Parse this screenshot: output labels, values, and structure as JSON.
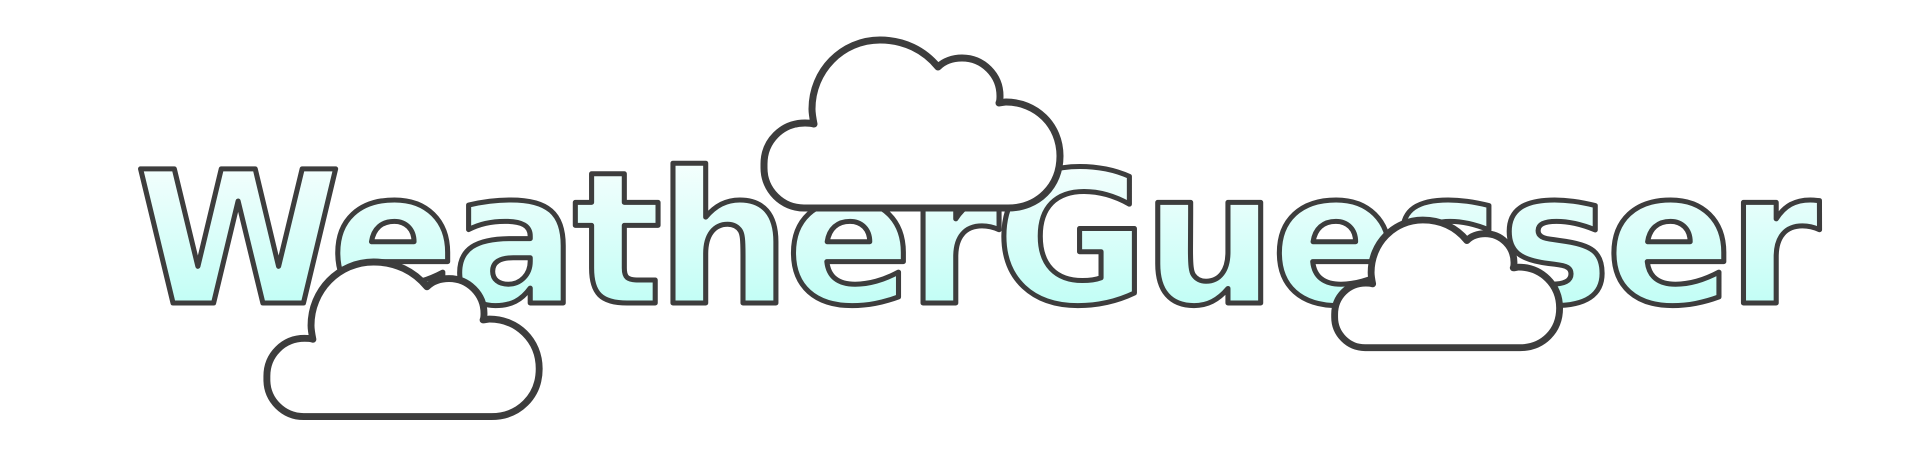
{
  "logo": {
    "text": "WeatherGuesser"
  },
  "colors": {
    "text_fill_top": "#ffffff",
    "text_fill_bottom": "#b3fdf3",
    "outline": "#3d3d3d",
    "cloud_fill": "#ffffff",
    "background": "#ffffff"
  },
  "icons": [
    "cloud-icon",
    "cloud-icon",
    "cloud-icon"
  ]
}
